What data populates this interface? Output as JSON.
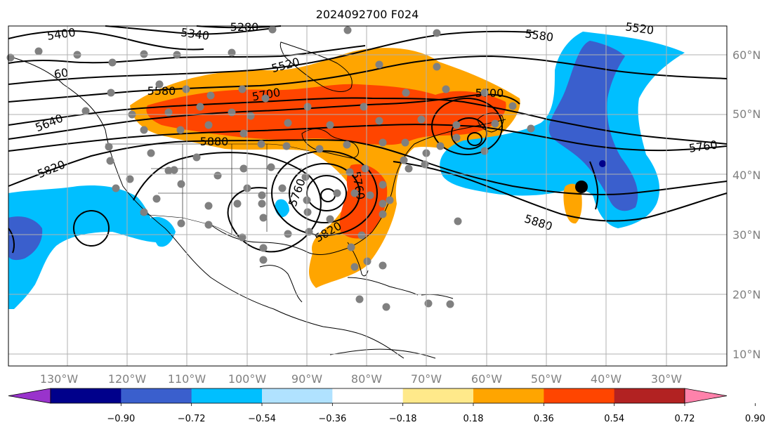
{
  "title": "2024092700 F024",
  "map": {
    "lon_labels": [
      "130°W",
      "120°W",
      "110°W",
      "100°W",
      "90°W",
      "80°W",
      "70°W",
      "60°W",
      "50°W",
      "40°W",
      "30°W"
    ],
    "lat_labels": [
      "10°N",
      "20°N",
      "30°N",
      "40°N",
      "50°N",
      "60°N"
    ],
    "grid": true
  },
  "colorbar": {
    "ticks": [
      "−0.90",
      "−0.72",
      "−0.54",
      "−0.36",
      "−0.18",
      "0.18",
      "0.36",
      "0.54",
      "0.72",
      "0.90"
    ],
    "colors": [
      "#9933cc",
      "#00008b",
      "#3a5fcd",
      "#00bfff",
      "#b0e2ff",
      "#ffffff",
      "#ffe98a",
      "#ffa500",
      "#ff4500",
      "#b22222",
      "#ff82ab"
    ]
  },
  "contour_labels": [
    "5400",
    "5340",
    "5280",
    "5580",
    "5520",
    "60",
    "5520",
    "5580",
    "5700",
    "5700",
    "5640",
    "5880",
    "5760",
    "5820",
    "5880",
    "5760",
    "5760",
    "5820"
  ],
  "colors": {
    "gridline": "#b0b0b0",
    "contour": "#000000",
    "station": "#808080"
  }
}
